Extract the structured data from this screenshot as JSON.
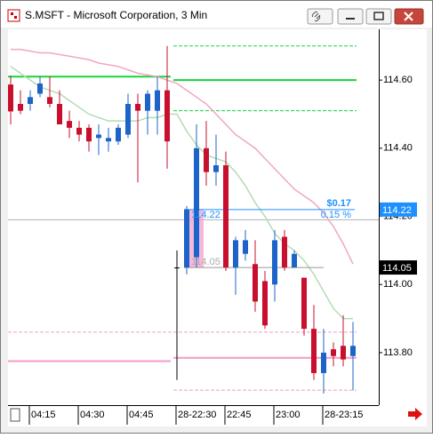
{
  "window": {
    "title": "S.MSFT - Microsoft Corporation, 3 Min"
  },
  "chart_data": {
    "type": "candlestick",
    "categories": [
      null,
      null,
      "04:15",
      null,
      null,
      null,
      null,
      "04:30",
      null,
      null,
      null,
      null,
      "04:45",
      null,
      null,
      null,
      null,
      "28-22:30",
      null,
      null,
      null,
      null,
      "22:45",
      null,
      null,
      null,
      null,
      "23:00",
      null,
      null,
      null,
      null,
      "28-23:15",
      null,
      null,
      null
    ],
    "open": [
      114.587,
      114.53,
      114.53,
      114.56,
      114.55,
      114.53,
      114.48,
      114.46,
      114.46,
      114.43,
      114.42,
      114.42,
      114.44,
      114.53,
      114.51,
      114.51,
      114.57,
      114.05,
      114.05,
      114.08,
      114.4,
      114.33,
      114.35,
      114.05,
      114.09,
      114.06,
      114.01,
      114.0,
      114.14,
      114.05,
      114.02,
      113.87,
      113.74,
      113.81,
      113.82,
      113.79
    ],
    "high": [
      114.613,
      114.57,
      114.57,
      114.61,
      114.61,
      114.57,
      114.51,
      114.48,
      114.47,
      114.47,
      114.46,
      114.47,
      114.56,
      114.56,
      114.57,
      114.61,
      114.7,
      114.1,
      114.23,
      114.47,
      114.48,
      114.44,
      114.39,
      114.14,
      114.16,
      114.13,
      114.04,
      114.16,
      114.16,
      114.1,
      114.02,
      113.94,
      113.87,
      113.83,
      113.91,
      113.89
    ],
    "low": [
      114.47,
      114.5,
      114.51,
      114.55,
      114.52,
      114.47,
      114.43,
      114.42,
      114.39,
      114.38,
      114.39,
      114.41,
      114.43,
      114.3,
      114.44,
      114.44,
      114.34,
      113.72,
      114.03,
      114.05,
      114.29,
      114.29,
      114.04,
      113.97,
      114.07,
      113.92,
      113.87,
      113.95,
      114.04,
      114.05,
      113.85,
      113.72,
      113.68,
      113.76,
      113.76,
      113.69
    ],
    "close": [
      114.508,
      114.51,
      114.55,
      114.59,
      114.53,
      114.47,
      114.46,
      114.44,
      114.42,
      114.44,
      114.43,
      114.46,
      114.53,
      114.51,
      114.56,
      114.57,
      114.42,
      114.05,
      114.22,
      114.4,
      114.33,
      114.35,
      114.05,
      114.13,
      114.13,
      113.95,
      113.88,
      114.13,
      114.05,
      114.09,
      113.87,
      113.74,
      113.8,
      113.79,
      113.78,
      113.82
    ],
    "up_color": "#1c64c8",
    "down_color": "#c8102e",
    "moving_averages": [
      {
        "color": "#f2a6c6",
        "values": [
          114.69,
          114.69,
          114.685,
          114.68,
          114.68,
          114.675,
          114.67,
          114.665,
          114.66,
          114.65,
          114.645,
          114.64,
          114.63,
          114.62,
          114.615,
          114.61,
          114.6,
          114.59,
          114.57,
          114.55,
          114.53,
          114.5,
          114.47,
          114.44,
          114.42,
          114.4,
          114.37,
          114.34,
          114.31,
          114.28,
          114.26,
          114.24,
          114.21,
          114.17,
          114.12,
          114.06
        ]
      },
      {
        "color": "#b4dcb4",
        "values": [
          114.64,
          114.62,
          114.6,
          114.58,
          114.57,
          114.56,
          114.54,
          114.52,
          114.5,
          114.49,
          114.48,
          114.48,
          114.48,
          114.48,
          114.49,
          114.49,
          114.5,
          114.5,
          114.45,
          114.41,
          114.38,
          114.37,
          114.36,
          114.33,
          114.29,
          114.24,
          114.2,
          114.15,
          114.12,
          114.1,
          114.07,
          114.03,
          113.98,
          113.93,
          113.9,
          113.9
        ]
      }
    ],
    "levels": [
      {
        "value": 114.61,
        "from": 0,
        "to": 16,
        "color": "#19d33c",
        "dash": false
      },
      {
        "value": 114.6,
        "from": 17,
        "to": 35,
        "color": "#19d33c",
        "dash": false
      },
      {
        "value": 114.7,
        "from": 17,
        "to": 35,
        "color": "#19d33c",
        "dash": true
      },
      {
        "value": 114.51,
        "from": 17,
        "to": 35,
        "color": "#19d33c",
        "dash": true
      },
      {
        "value": 113.775,
        "from": 0,
        "to": 16,
        "color": "#f29cc8",
        "dash": false
      },
      {
        "value": 113.785,
        "from": 17,
        "to": 35,
        "color": "#f29cc8",
        "dash": false
      },
      {
        "value": 113.86,
        "from": 0,
        "to": 35,
        "color": "#f29cc8",
        "dash": true
      },
      {
        "value": 113.69,
        "from": 17,
        "to": 35,
        "color": "#f29cc8",
        "dash": true
      }
    ],
    "crosshair": 114.19,
    "measure": {
      "from": 18,
      "to": 35,
      "start": 114.05,
      "end": 114.22,
      "change": {
        "value": 0.17,
        "label": "$0.17"
      },
      "percent": {
        "value": 0.15,
        "label": "0.15 %"
      }
    },
    "price_tags": [
      {
        "value": 114.22,
        "color": "#1e90ff"
      },
      {
        "value": 114.05,
        "color": "#000000"
      }
    ],
    "ylim": [
      113.646,
      114.749
    ],
    "yticks": [
      {
        "value": 113.8,
        "label": "113.80"
      },
      {
        "value": 114.0,
        "label": "114.00"
      },
      {
        "value": 114.2,
        "label": "114.20"
      },
      {
        "value": 114.4,
        "label": "114.40"
      },
      {
        "value": 114.6,
        "label": "114.60"
      }
    ]
  }
}
